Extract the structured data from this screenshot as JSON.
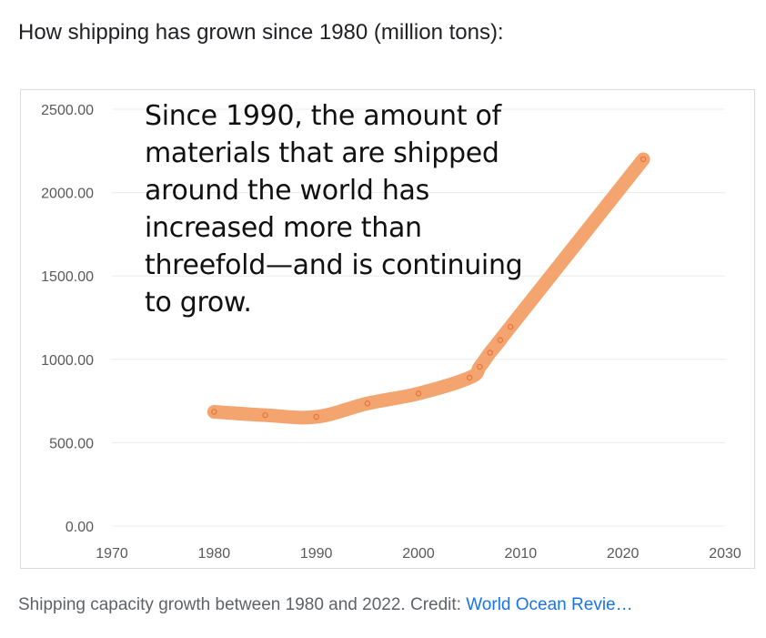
{
  "heading": "How shipping has grown since 1980 (million tons):",
  "caption": {
    "text": "Shipping capacity growth between 1980 and 2022. Credit: ",
    "link_text": "World Ocean Revie…"
  },
  "chart_data": {
    "type": "line",
    "title": "",
    "xlabel": "",
    "ylabel": "",
    "annotation": "Since 1990, the amount of materials that are shipped around the world has increased more than threefold—and is continuing to grow.",
    "x": [
      1980,
      1985,
      1990,
      1995,
      2000,
      2005,
      2006,
      2007,
      2008,
      2009,
      2022
    ],
    "series": [
      {
        "values": [
          685,
          665,
          655,
          735,
          795,
          890,
          955,
          1040,
          1115,
          1195,
          2200
        ],
        "color": "#f4a46f"
      }
    ],
    "xlim": [
      1970,
      2030
    ],
    "ylim": [
      0,
      2500
    ],
    "xticks": [
      "1970",
      "1980",
      "1990",
      "2000",
      "2010",
      "2020",
      "2030"
    ],
    "yticks": [
      "0.00",
      "500.00",
      "1000.00",
      "1500.00",
      "2000.00",
      "2500.00"
    ],
    "grid": true,
    "legend": "none",
    "marker_color": "#e6733b"
  }
}
